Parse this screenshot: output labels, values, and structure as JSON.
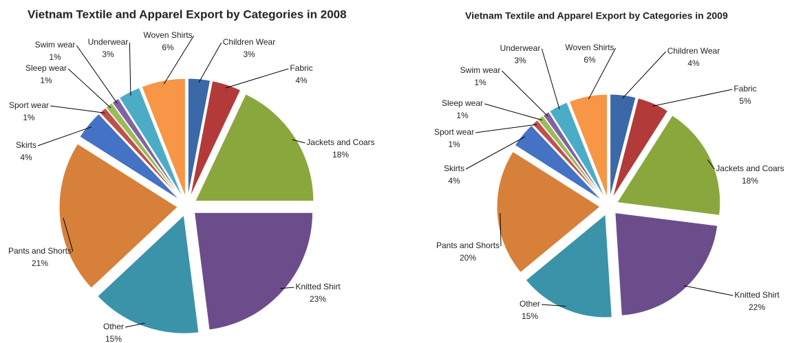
{
  "chart_data": [
    {
      "type": "pie",
      "title": "Vietnam Textile and Apparel Export by Categories in 2008",
      "categories": [
        "Children Wear",
        "Fabric",
        "Jackets and Coars",
        "Knitted Shirt",
        "Other",
        "Pants and Shorts",
        "Skirts",
        "Sport wear",
        "Sleep wear",
        "Swim wear",
        "Underwear",
        "Woven Shirts"
      ],
      "values": [
        3,
        4,
        18,
        23,
        15,
        21,
        4,
        1,
        1,
        1,
        3,
        6
      ],
      "value_labels": [
        "3%",
        "4%",
        "18%",
        "23%",
        "15%",
        "21%",
        "4%",
        "1%",
        "1%",
        "1%",
        "3%",
        "6%"
      ],
      "colors": [
        "#3b68a8",
        "#b23b3a",
        "#8aa73d",
        "#6b4d8b",
        "#3a93a9",
        "#d7803a",
        "#4472c4",
        "#c0504d",
        "#9bbb59",
        "#8064a2",
        "#4bacc6",
        "#f79646"
      ]
    },
    {
      "type": "pie",
      "title": "Vietnam Textile and Apparel Export by Categories in 2009",
      "categories": [
        "Children Wear",
        "Fabric",
        "Jackets and Coars",
        "Knitted Shirt",
        "Other",
        "Pants and Shorts",
        "Skirts",
        "Sport wear",
        "Sleep wear",
        "Swim wear",
        "Underwear",
        "Woven Shirts"
      ],
      "values": [
        4,
        5,
        18,
        22,
        15,
        20,
        4,
        1,
        1,
        1,
        3,
        6
      ],
      "value_labels": [
        "4%",
        "5%",
        "18%",
        "22%",
        "15%",
        "20%",
        "4%",
        "1%",
        "1%",
        "1%",
        "3%",
        "6%"
      ],
      "colors": [
        "#3b68a8",
        "#b23b3a",
        "#8aa73d",
        "#6b4d8b",
        "#3a93a9",
        "#d7803a",
        "#4472c4",
        "#c0504d",
        "#9bbb59",
        "#8064a2",
        "#4bacc6",
        "#f79646"
      ]
    }
  ]
}
